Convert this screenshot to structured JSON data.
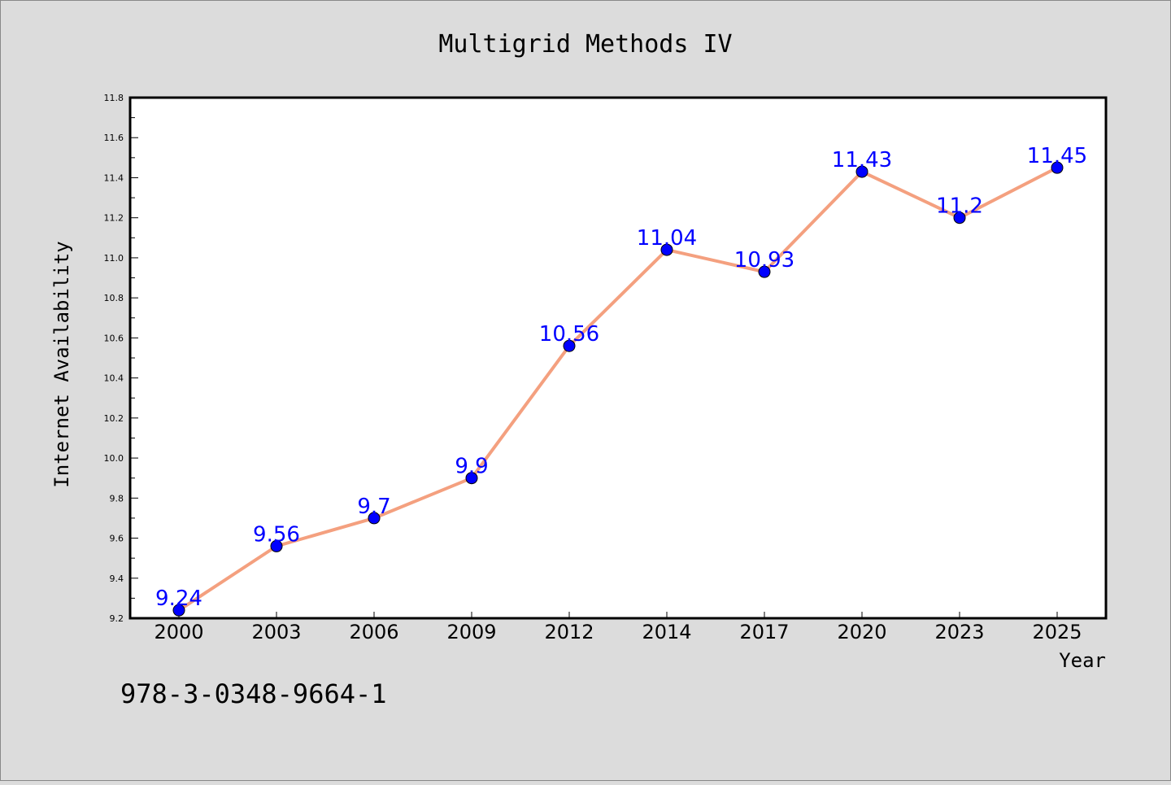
{
  "chart_data": {
    "type": "line",
    "title": "Multigrid Methods IV",
    "xlabel": "Year",
    "ylabel": "Internet Availability",
    "categories": [
      "2000",
      "2003",
      "2006",
      "2009",
      "2012",
      "2014",
      "2017",
      "2020",
      "2023",
      "2025"
    ],
    "values": [
      9.24,
      9.56,
      9.7,
      9.9,
      10.56,
      11.04,
      10.93,
      11.43,
      11.2,
      11.45
    ],
    "data_labels": [
      "9.24",
      "9.56",
      "9.7",
      "9.9",
      "10.56",
      "11.04",
      "10.93",
      "11.43",
      "11.2",
      "11.45"
    ],
    "ylim": [
      9.2,
      11.8
    ],
    "yticks": [
      "9.2",
      "9.4",
      "9.6",
      "9.8",
      "10.0",
      "10.2",
      "10.4",
      "10.6",
      "10.8",
      "11.0",
      "11.2",
      "11.4",
      "11.6",
      "11.8"
    ],
    "grid": false,
    "legend": "none",
    "line_color": "#f4a07f",
    "marker_color": "#0000ff",
    "label_color": "#0000ff"
  },
  "footer": {
    "isbn": "978-3-0348-9664-1"
  }
}
